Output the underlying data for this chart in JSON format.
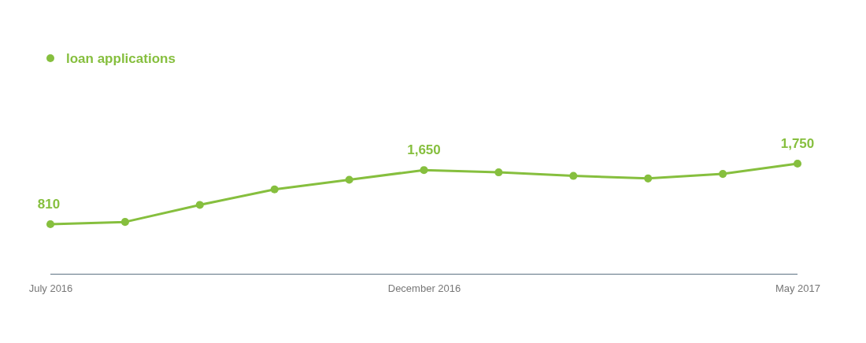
{
  "chart_data": {
    "type": "line",
    "categories": [
      "July 2016",
      null,
      null,
      null,
      null,
      "December 2016",
      null,
      null,
      null,
      null,
      "May 2017"
    ],
    "series": [
      {
        "name": "loan applications",
        "color": "#86bf3e",
        "values": [
          810,
          845,
          1110,
          1350,
          1500,
          1650,
          1615,
          1560,
          1520,
          1590,
          1750
        ],
        "value_labels": [
          "810",
          null,
          null,
          null,
          null,
          "1,650",
          null,
          null,
          null,
          null,
          "1,750"
        ]
      }
    ],
    "tick_labels": "x",
    "legend": "top left",
    "marker": "circle",
    "line_style": "solid",
    "grid": false
  }
}
